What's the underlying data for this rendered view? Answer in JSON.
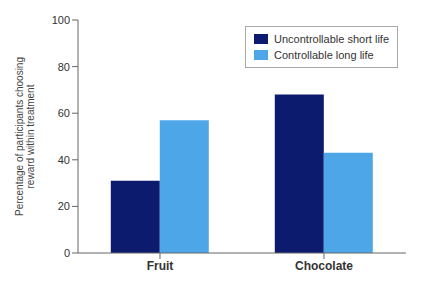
{
  "chart_data": {
    "type": "bar",
    "categories": [
      "Fruit",
      "Chocolate"
    ],
    "series": [
      {
        "name": "Uncontrollable short life",
        "color": "#0d1b6e",
        "values": [
          31,
          68
        ]
      },
      {
        "name": "Controllable long life",
        "color": "#4da6e8",
        "values": [
          57,
          43
        ]
      }
    ],
    "ylabel": "Percentage of participants choosing\nreward within treatment",
    "ylim": [
      0,
      100
    ],
    "yticks": [
      0,
      20,
      40,
      60,
      80,
      100
    ],
    "grid": false,
    "legend": "upper right"
  }
}
